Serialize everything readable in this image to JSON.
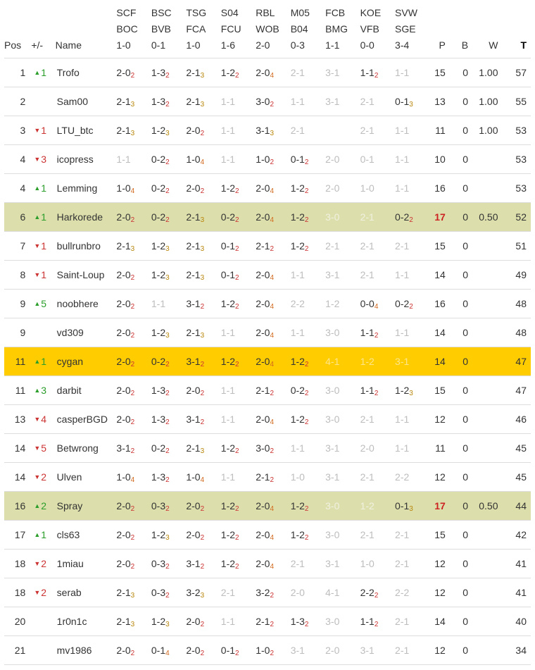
{
  "columns": {
    "pos": "Pos",
    "change": "+/-",
    "name": "Name",
    "p": "P",
    "b": "B",
    "w": "W",
    "t": "T"
  },
  "games": [
    {
      "home": "SCF",
      "away": "BOC",
      "result": "1-0"
    },
    {
      "home": "BSC",
      "away": "BVB",
      "result": "0-1"
    },
    {
      "home": "TSG",
      "away": "FCA",
      "result": "1-0"
    },
    {
      "home": "S04",
      "away": "FCU",
      "result": "1-6"
    },
    {
      "home": "RBL",
      "away": "WOB",
      "result": "2-0"
    },
    {
      "home": "M05",
      "away": "B04",
      "result": "0-3"
    },
    {
      "home": "FCB",
      "away": "BMG",
      "result": "1-1"
    },
    {
      "home": "KOE",
      "away": "VFB",
      "result": "0-0"
    },
    {
      "home": "SVW",
      "away": "SGE",
      "result": "3-4"
    }
  ],
  "colors": {
    "highlight_green": "#dcdfac",
    "highlight_gold": "#ffcc00",
    "up": "#2a9d2a",
    "down": "#cc3333",
    "muted_tip": "#bdbdbd"
  },
  "rows": [
    {
      "pos": "1",
      "dir": "up",
      "change": "1",
      "name": "Trofo",
      "hl": "",
      "tips": [
        [
          "2-0",
          "2",
          0
        ],
        [
          "1-3",
          "2",
          0
        ],
        [
          "2-1",
          "3",
          0
        ],
        [
          "1-2",
          "2",
          0
        ],
        [
          "2-0",
          "4",
          0
        ],
        [
          "2-1",
          "",
          1
        ],
        [
          "3-1",
          "",
          1
        ],
        [
          "1-1",
          "2",
          0
        ],
        [
          "1-1",
          "",
          1
        ]
      ],
      "p": "15",
      "b": "0",
      "w": "1.00",
      "t": "57"
    },
    {
      "pos": "2",
      "dir": "",
      "change": "",
      "name": "Sam00",
      "hl": "",
      "tips": [
        [
          "2-1",
          "3",
          0
        ],
        [
          "1-3",
          "2",
          0
        ],
        [
          "2-1",
          "3",
          0
        ],
        [
          "1-1",
          "",
          1
        ],
        [
          "3-0",
          "2",
          0
        ],
        [
          "1-1",
          "",
          1
        ],
        [
          "3-1",
          "",
          1
        ],
        [
          "2-1",
          "",
          1
        ],
        [
          "0-1",
          "3",
          0
        ]
      ],
      "p": "13",
      "b": "0",
      "w": "1.00",
      "t": "55"
    },
    {
      "pos": "3",
      "dir": "down",
      "change": "1",
      "name": "LTU_btc",
      "hl": "",
      "tips": [
        [
          "2-1",
          "3",
          0
        ],
        [
          "1-2",
          "3",
          0
        ],
        [
          "2-0",
          "2",
          0
        ],
        [
          "1-1",
          "",
          1
        ],
        [
          "3-1",
          "3",
          0
        ],
        [
          "2-1",
          "",
          1
        ],
        [
          "",
          "",
          1
        ],
        [
          "2-1",
          "",
          1
        ],
        [
          "1-1",
          "",
          1
        ]
      ],
      "p": "11",
      "b": "0",
      "w": "1.00",
      "t": "53"
    },
    {
      "pos": "4",
      "dir": "down",
      "change": "3",
      "name": "icopress",
      "hl": "",
      "tips": [
        [
          "1-1",
          "",
          1
        ],
        [
          "0-2",
          "2",
          0
        ],
        [
          "1-0",
          "4",
          0
        ],
        [
          "1-1",
          "",
          1
        ],
        [
          "1-0",
          "2",
          0
        ],
        [
          "0-1",
          "2",
          0
        ],
        [
          "2-0",
          "",
          1
        ],
        [
          "0-1",
          "",
          1
        ],
        [
          "1-1",
          "",
          1
        ]
      ],
      "p": "10",
      "b": "0",
      "w": "",
      "t": "53"
    },
    {
      "pos": "4",
      "dir": "up",
      "change": "1",
      "name": "Lemming",
      "hl": "",
      "tips": [
        [
          "1-0",
          "4",
          0
        ],
        [
          "0-2",
          "2",
          0
        ],
        [
          "2-0",
          "2",
          0
        ],
        [
          "1-2",
          "2",
          0
        ],
        [
          "2-0",
          "4",
          0
        ],
        [
          "1-2",
          "2",
          0
        ],
        [
          "2-0",
          "",
          1
        ],
        [
          "1-0",
          "",
          1
        ],
        [
          "1-1",
          "",
          1
        ]
      ],
      "p": "16",
      "b": "0",
      "w": "",
      "t": "53"
    },
    {
      "pos": "6",
      "dir": "up",
      "change": "1",
      "name": "Harkorede",
      "hl": "green",
      "tips": [
        [
          "2-0",
          "2",
          0
        ],
        [
          "0-2",
          "2",
          0
        ],
        [
          "2-1",
          "3",
          0
        ],
        [
          "0-2",
          "2",
          0
        ],
        [
          "2-0",
          "4",
          0
        ],
        [
          "1-2",
          "2",
          0
        ],
        [
          "3-0",
          "",
          1
        ],
        [
          "2-1",
          "",
          1
        ],
        [
          "0-2",
          "2",
          0
        ]
      ],
      "p": "17",
      "b": "0",
      "w": "0.50",
      "t": "52",
      "p_red": true
    },
    {
      "pos": "7",
      "dir": "down",
      "change": "1",
      "name": "bullrunbro",
      "hl": "",
      "tips": [
        [
          "2-1",
          "3",
          0
        ],
        [
          "1-2",
          "3",
          0
        ],
        [
          "2-1",
          "3",
          0
        ],
        [
          "0-1",
          "2",
          0
        ],
        [
          "2-1",
          "2",
          0
        ],
        [
          "1-2",
          "2",
          0
        ],
        [
          "2-1",
          "",
          1
        ],
        [
          "2-1",
          "",
          1
        ],
        [
          "2-1",
          "",
          1
        ]
      ],
      "p": "15",
      "b": "0",
      "w": "",
      "t": "51"
    },
    {
      "pos": "8",
      "dir": "down",
      "change": "1",
      "name": "Saint-Loup",
      "hl": "",
      "tips": [
        [
          "2-0",
          "2",
          0
        ],
        [
          "1-2",
          "3",
          0
        ],
        [
          "2-1",
          "3",
          0
        ],
        [
          "0-1",
          "2",
          0
        ],
        [
          "2-0",
          "4",
          0
        ],
        [
          "1-1",
          "",
          1
        ],
        [
          "3-1",
          "",
          1
        ],
        [
          "2-1",
          "",
          1
        ],
        [
          "1-1",
          "",
          1
        ]
      ],
      "p": "14",
      "b": "0",
      "w": "",
      "t": "49"
    },
    {
      "pos": "9",
      "dir": "up",
      "change": "5",
      "name": "noobhere",
      "hl": "",
      "tips": [
        [
          "2-0",
          "2",
          0
        ],
        [
          "1-1",
          "",
          1
        ],
        [
          "3-1",
          "2",
          0
        ],
        [
          "1-2",
          "2",
          0
        ],
        [
          "2-0",
          "4",
          0
        ],
        [
          "2-2",
          "",
          1
        ],
        [
          "1-2",
          "",
          1
        ],
        [
          "0-0",
          "4",
          0
        ],
        [
          "0-2",
          "2",
          0
        ]
      ],
      "p": "16",
      "b": "0",
      "w": "",
      "t": "48"
    },
    {
      "pos": "9",
      "dir": "",
      "change": "",
      "name": "vd309",
      "hl": "",
      "tips": [
        [
          "2-0",
          "2",
          0
        ],
        [
          "1-2",
          "3",
          0
        ],
        [
          "2-1",
          "3",
          0
        ],
        [
          "1-1",
          "",
          1
        ],
        [
          "2-0",
          "4",
          0
        ],
        [
          "1-1",
          "",
          1
        ],
        [
          "3-0",
          "",
          1
        ],
        [
          "1-1",
          "2",
          0
        ],
        [
          "1-1",
          "",
          1
        ]
      ],
      "p": "14",
      "b": "0",
      "w": "",
      "t": "48"
    },
    {
      "pos": "11",
      "dir": "up",
      "change": "1",
      "name": "cygan",
      "hl": "gold",
      "tips": [
        [
          "2-0",
          "2",
          0
        ],
        [
          "0-2",
          "2",
          0
        ],
        [
          "3-1",
          "2",
          0
        ],
        [
          "1-2",
          "2",
          0
        ],
        [
          "2-0",
          "4",
          0
        ],
        [
          "1-2",
          "2",
          0
        ],
        [
          "4-1",
          "",
          1
        ],
        [
          "1-2",
          "",
          1
        ],
        [
          "3-1",
          "",
          1
        ]
      ],
      "p": "14",
      "b": "0",
      "w": "",
      "t": "47"
    },
    {
      "pos": "11",
      "dir": "up",
      "change": "3",
      "name": "darbit",
      "hl": "",
      "tips": [
        [
          "2-0",
          "2",
          0
        ],
        [
          "1-3",
          "2",
          0
        ],
        [
          "2-0",
          "2",
          0
        ],
        [
          "1-1",
          "",
          1
        ],
        [
          "2-1",
          "2",
          0
        ],
        [
          "0-2",
          "2",
          0
        ],
        [
          "3-0",
          "",
          1
        ],
        [
          "1-1",
          "2",
          0
        ],
        [
          "1-2",
          "3",
          0
        ]
      ],
      "p": "15",
      "b": "0",
      "w": "",
      "t": "47"
    },
    {
      "pos": "13",
      "dir": "down",
      "change": "4",
      "name": "casperBGD",
      "hl": "",
      "tips": [
        [
          "2-0",
          "2",
          0
        ],
        [
          "1-3",
          "2",
          0
        ],
        [
          "3-1",
          "2",
          0
        ],
        [
          "1-1",
          "",
          1
        ],
        [
          "2-0",
          "4",
          0
        ],
        [
          "1-2",
          "2",
          0
        ],
        [
          "3-0",
          "",
          1
        ],
        [
          "2-1",
          "",
          1
        ],
        [
          "1-1",
          "",
          1
        ]
      ],
      "p": "12",
      "b": "0",
      "w": "",
      "t": "46"
    },
    {
      "pos": "14",
      "dir": "down",
      "change": "5",
      "name": "Betwrong",
      "hl": "",
      "tips": [
        [
          "3-1",
          "2",
          0
        ],
        [
          "0-2",
          "2",
          0
        ],
        [
          "2-1",
          "3",
          0
        ],
        [
          "1-2",
          "2",
          0
        ],
        [
          "3-0",
          "2",
          0
        ],
        [
          "1-1",
          "",
          1
        ],
        [
          "3-1",
          "",
          1
        ],
        [
          "2-0",
          "",
          1
        ],
        [
          "1-1",
          "",
          1
        ]
      ],
      "p": "11",
      "b": "0",
      "w": "",
      "t": "45"
    },
    {
      "pos": "14",
      "dir": "down",
      "change": "2",
      "name": "Ulven",
      "hl": "",
      "tips": [
        [
          "1-0",
          "4",
          0
        ],
        [
          "1-3",
          "2",
          0
        ],
        [
          "1-0",
          "4",
          0
        ],
        [
          "1-1",
          "",
          1
        ],
        [
          "2-1",
          "2",
          0
        ],
        [
          "1-0",
          "",
          1
        ],
        [
          "3-1",
          "",
          1
        ],
        [
          "2-1",
          "",
          1
        ],
        [
          "2-2",
          "",
          1
        ]
      ],
      "p": "12",
      "b": "0",
      "w": "",
      "t": "45"
    },
    {
      "pos": "16",
      "dir": "up",
      "change": "2",
      "name": "Spray",
      "hl": "green",
      "tips": [
        [
          "2-0",
          "2",
          0
        ],
        [
          "0-3",
          "2",
          0
        ],
        [
          "2-0",
          "2",
          0
        ],
        [
          "1-2",
          "2",
          0
        ],
        [
          "2-0",
          "4",
          0
        ],
        [
          "1-2",
          "2",
          0
        ],
        [
          "3-0",
          "",
          1
        ],
        [
          "1-2",
          "",
          1
        ],
        [
          "0-1",
          "3",
          0
        ]
      ],
      "p": "17",
      "b": "0",
      "w": "0.50",
      "t": "44",
      "p_red": true
    },
    {
      "pos": "17",
      "dir": "up",
      "change": "1",
      "name": "cls63",
      "hl": "",
      "tips": [
        [
          "2-0",
          "2",
          0
        ],
        [
          "1-2",
          "3",
          0
        ],
        [
          "2-0",
          "2",
          0
        ],
        [
          "1-2",
          "2",
          0
        ],
        [
          "2-0",
          "4",
          0
        ],
        [
          "1-2",
          "2",
          0
        ],
        [
          "3-0",
          "",
          1
        ],
        [
          "2-1",
          "",
          1
        ],
        [
          "2-1",
          "",
          1
        ]
      ],
      "p": "15",
      "b": "0",
      "w": "",
      "t": "42"
    },
    {
      "pos": "18",
      "dir": "down",
      "change": "2",
      "name": "1miau",
      "hl": "",
      "tips": [
        [
          "2-0",
          "2",
          0
        ],
        [
          "0-3",
          "2",
          0
        ],
        [
          "3-1",
          "2",
          0
        ],
        [
          "1-2",
          "2",
          0
        ],
        [
          "2-0",
          "4",
          0
        ],
        [
          "2-1",
          "",
          1
        ],
        [
          "3-1",
          "",
          1
        ],
        [
          "1-0",
          "",
          1
        ],
        [
          "2-1",
          "",
          1
        ]
      ],
      "p": "12",
      "b": "0",
      "w": "",
      "t": "41"
    },
    {
      "pos": "18",
      "dir": "down",
      "change": "2",
      "name": "serab",
      "hl": "",
      "tips": [
        [
          "2-1",
          "3",
          0
        ],
        [
          "0-3",
          "2",
          0
        ],
        [
          "3-2",
          "3",
          0
        ],
        [
          "2-1",
          "",
          1
        ],
        [
          "3-2",
          "2",
          0
        ],
        [
          "2-0",
          "",
          1
        ],
        [
          "4-1",
          "",
          1
        ],
        [
          "2-2",
          "2",
          0
        ],
        [
          "2-2",
          "",
          1
        ]
      ],
      "p": "12",
      "b": "0",
      "w": "",
      "t": "41"
    },
    {
      "pos": "20",
      "dir": "",
      "change": "",
      "name": "1r0n1c",
      "hl": "",
      "tips": [
        [
          "2-1",
          "3",
          0
        ],
        [
          "1-2",
          "3",
          0
        ],
        [
          "2-0",
          "2",
          0
        ],
        [
          "1-1",
          "",
          1
        ],
        [
          "2-1",
          "2",
          0
        ],
        [
          "1-3",
          "2",
          0
        ],
        [
          "3-0",
          "",
          1
        ],
        [
          "1-1",
          "2",
          0
        ],
        [
          "2-1",
          "",
          1
        ]
      ],
      "p": "14",
      "b": "0",
      "w": "",
      "t": "40"
    },
    {
      "pos": "21",
      "dir": "",
      "change": "",
      "name": "mv1986",
      "hl": "",
      "tips": [
        [
          "2-0",
          "2",
          0
        ],
        [
          "0-1",
          "4",
          0
        ],
        [
          "2-0",
          "2",
          0
        ],
        [
          "0-1",
          "2",
          0
        ],
        [
          "1-0",
          "2",
          0
        ],
        [
          "3-1",
          "",
          1
        ],
        [
          "2-0",
          "",
          1
        ],
        [
          "3-1",
          "",
          1
        ],
        [
          "2-1",
          "",
          1
        ]
      ],
      "p": "12",
      "b": "0",
      "w": "",
      "t": "34"
    }
  ]
}
